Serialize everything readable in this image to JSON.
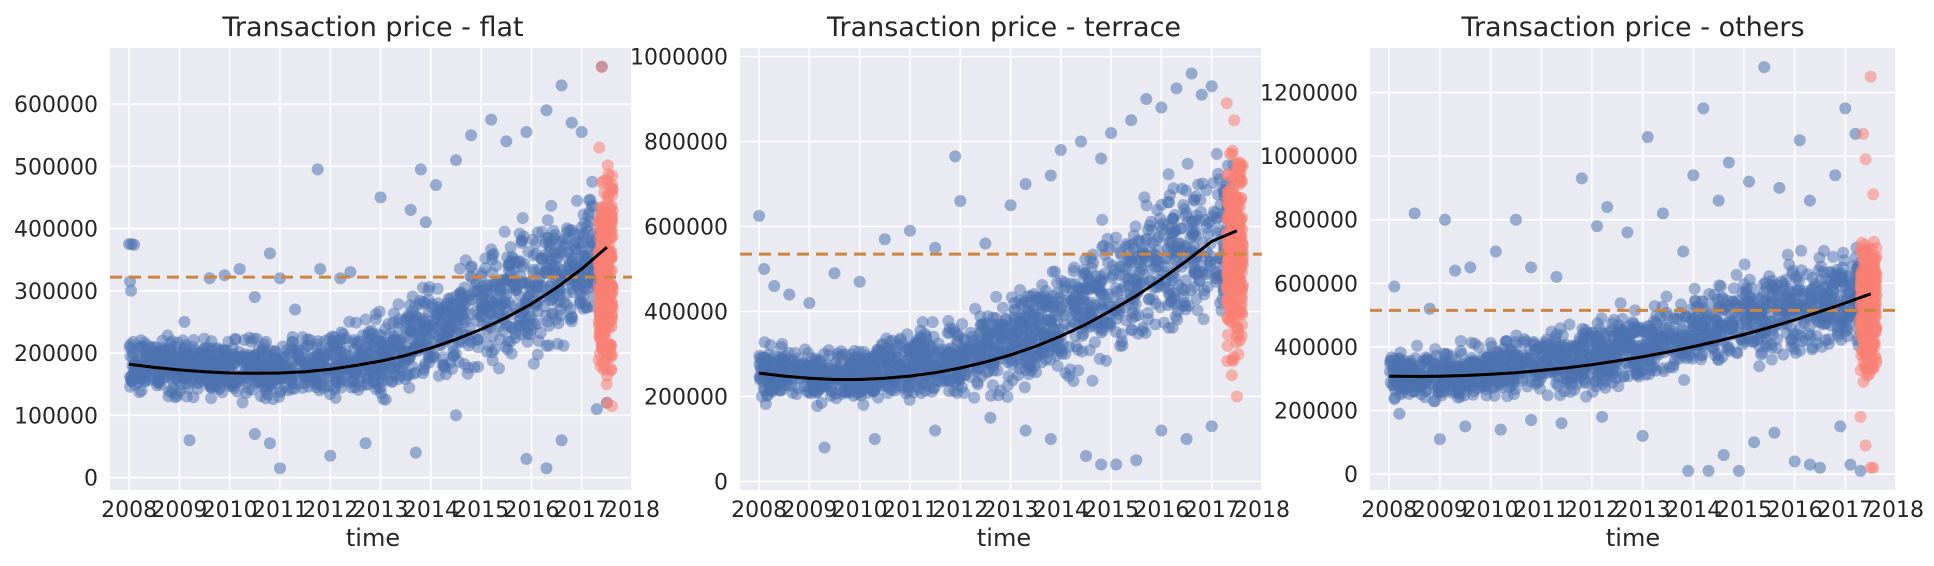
{
  "colors": {
    "background": "#ffffff",
    "axes_face": "#eaeaf2",
    "grid": "#ffffff",
    "scatter_main": "#4c72b0",
    "scatter_recent": "#fa8072",
    "trend_line": "#000000",
    "mean_line": "#cd853f",
    "text": "#262626"
  },
  "chart_data": [
    {
      "type": "scatter",
      "title": "Transaction price - flat",
      "xlabel": "time",
      "ylabel": "",
      "grid": true,
      "legend": "none",
      "xlim": [
        2007.62,
        2018.0
      ],
      "ylim": [
        -20000,
        690000
      ],
      "x_ticks": [
        2008,
        2009,
        2010,
        2011,
        2012,
        2013,
        2014,
        2015,
        2016,
        2017,
        2018
      ],
      "y_ticks": [
        0,
        100000,
        200000,
        300000,
        400000,
        500000,
        600000
      ],
      "mean_line": 322000,
      "trend_curve": {
        "x": [
          2008.0,
          2008.5,
          2009.0,
          2009.5,
          2010.0,
          2010.5,
          2011.0,
          2011.5,
          2012.0,
          2012.5,
          2013.0,
          2013.5,
          2014.0,
          2014.5,
          2015.0,
          2015.5,
          2016.0,
          2016.5,
          2017.0,
          2017.5
        ],
        "y": [
          182000,
          177000,
          173000,
          170000,
          168000,
          167500,
          168000,
          170000,
          174000,
          180000,
          187000,
          196000,
          208000,
          222000,
          238000,
          257000,
          279000,
          305000,
          335000,
          370000
        ]
      },
      "main_band": [
        [
          2008.0,
          118000,
          248000
        ],
        [
          2009.0,
          112000,
          244000
        ],
        [
          2010.0,
          108000,
          240000
        ],
        [
          2011.0,
          106000,
          240000
        ],
        [
          2012.0,
          108000,
          250000
        ],
        [
          2013.0,
          112000,
          278000
        ],
        [
          2014.0,
          124000,
          335000
        ],
        [
          2015.0,
          142000,
          400000
        ],
        [
          2016.0,
          162000,
          460000
        ],
        [
          2017.0,
          180000,
          500000
        ],
        [
          2017.45,
          195000,
          510000
        ]
      ],
      "recent_band": [
        [
          2017.33,
          140000,
          500000
        ],
        [
          2017.62,
          150000,
          520000
        ]
      ],
      "outliers": [
        [
          2008.0,
          375000
        ],
        [
          2008.05,
          375000
        ],
        [
          2008.1,
          374000
        ],
        [
          2008.02,
          315000
        ],
        [
          2008.04,
          300000
        ],
        [
          2009.1,
          250000
        ],
        [
          2009.6,
          320000
        ],
        [
          2009.9,
          325000
        ],
        [
          2010.2,
          335000
        ],
        [
          2010.5,
          290000
        ],
        [
          2010.8,
          360000
        ],
        [
          2011.0,
          320000
        ],
        [
          2011.3,
          270000
        ],
        [
          2011.75,
          495000
        ],
        [
          2011.8,
          335000
        ],
        [
          2012.2,
          320000
        ],
        [
          2012.4,
          330000
        ],
        [
          2013.0,
          450000
        ],
        [
          2013.6,
          430000
        ],
        [
          2013.8,
          495000
        ],
        [
          2013.9,
          410000
        ],
        [
          2014.1,
          470000
        ],
        [
          2014.5,
          510000
        ],
        [
          2014.8,
          550000
        ],
        [
          2015.2,
          575000
        ],
        [
          2015.5,
          540000
        ],
        [
          2015.9,
          555000
        ],
        [
          2016.3,
          590000
        ],
        [
          2016.6,
          630000
        ],
        [
          2016.8,
          570000
        ],
        [
          2017.0,
          555000
        ],
        [
          2017.4,
          660000
        ],
        [
          2009.2,
          60000
        ],
        [
          2010.5,
          70000
        ],
        [
          2010.8,
          55000
        ],
        [
          2011.0,
          15000
        ],
        [
          2012.0,
          35000
        ],
        [
          2012.7,
          55000
        ],
        [
          2013.7,
          40000
        ],
        [
          2014.5,
          100000
        ],
        [
          2015.9,
          30000
        ],
        [
          2016.3,
          15000
        ],
        [
          2016.6,
          60000
        ],
        [
          2017.3,
          110000
        ],
        [
          2017.5,
          120000
        ]
      ],
      "outliers_recent": [
        [
          2017.4,
          660000
        ],
        [
          2017.35,
          530000
        ],
        [
          2017.5,
          120000
        ],
        [
          2017.6,
          115000
        ]
      ]
    },
    {
      "type": "scatter",
      "title": "Transaction price - terrace",
      "xlabel": "time",
      "ylabel": "",
      "grid": true,
      "legend": "none",
      "xlim": [
        2007.62,
        2018.0
      ],
      "ylim": [
        -20000,
        1020000
      ],
      "x_ticks": [
        2008,
        2009,
        2010,
        2011,
        2012,
        2013,
        2014,
        2015,
        2016,
        2017,
        2018
      ],
      "y_ticks": [
        0,
        200000,
        400000,
        600000,
        800000,
        1000000
      ],
      "mean_line": 535000,
      "trend_curve": {
        "x": [
          2008.0,
          2008.5,
          2009.0,
          2009.5,
          2010.0,
          2010.5,
          2011.0,
          2011.5,
          2012.0,
          2012.5,
          2013.0,
          2013.5,
          2014.0,
          2014.5,
          2015.0,
          2015.5,
          2016.0,
          2016.5,
          2017.0,
          2017.5
        ],
        "y": [
          255000,
          248000,
          243000,
          240000,
          240000,
          243000,
          248000,
          256000,
          267000,
          281000,
          298000,
          318000,
          342000,
          370000,
          402000,
          437000,
          476000,
          519000,
          565000,
          590000
        ]
      },
      "main_band": [
        [
          2008.0,
          170000,
          340000
        ],
        [
          2009.0,
          160000,
          330000
        ],
        [
          2010.0,
          160000,
          345000
        ],
        [
          2011.0,
          160000,
          380000
        ],
        [
          2012.0,
          170000,
          420000
        ],
        [
          2013.0,
          180000,
          470000
        ],
        [
          2014.0,
          200000,
          560000
        ],
        [
          2015.0,
          240000,
          660000
        ],
        [
          2016.0,
          280000,
          760000
        ],
        [
          2017.0,
          320000,
          820000
        ],
        [
          2017.45,
          340000,
          840000
        ]
      ],
      "recent_band": [
        [
          2017.3,
          260000,
          800000
        ],
        [
          2017.62,
          280000,
          820000
        ]
      ],
      "outliers": [
        [
          2008.0,
          625000
        ],
        [
          2008.1,
          500000
        ],
        [
          2008.3,
          460000
        ],
        [
          2008.6,
          440000
        ],
        [
          2009.0,
          420000
        ],
        [
          2009.5,
          490000
        ],
        [
          2010.0,
          470000
        ],
        [
          2010.5,
          570000
        ],
        [
          2011.0,
          590000
        ],
        [
          2011.5,
          550000
        ],
        [
          2011.9,
          765000
        ],
        [
          2012.0,
          660000
        ],
        [
          2012.5,
          560000
        ],
        [
          2013.0,
          650000
        ],
        [
          2013.3,
          700000
        ],
        [
          2013.8,
          720000
        ],
        [
          2014.0,
          780000
        ],
        [
          2014.4,
          800000
        ],
        [
          2014.8,
          760000
        ],
        [
          2015.0,
          820000
        ],
        [
          2015.4,
          850000
        ],
        [
          2015.7,
          900000
        ],
        [
          2016.0,
          880000
        ],
        [
          2016.3,
          925000
        ],
        [
          2016.6,
          960000
        ],
        [
          2016.8,
          910000
        ],
        [
          2017.0,
          930000
        ],
        [
          2009.3,
          80000
        ],
        [
          2010.3,
          100000
        ],
        [
          2011.5,
          120000
        ],
        [
          2012.6,
          150000
        ],
        [
          2013.3,
          120000
        ],
        [
          2013.8,
          100000
        ],
        [
          2014.5,
          60000
        ],
        [
          2014.8,
          40000
        ],
        [
          2015.1,
          40000
        ],
        [
          2015.5,
          50000
        ],
        [
          2016.0,
          120000
        ],
        [
          2016.5,
          100000
        ],
        [
          2017.0,
          130000
        ]
      ],
      "outliers_recent": [
        [
          2017.3,
          890000
        ],
        [
          2017.45,
          850000
        ],
        [
          2017.4,
          250000
        ],
        [
          2017.5,
          200000
        ]
      ]
    },
    {
      "type": "scatter",
      "title": "Transaction price - others",
      "xlabel": "time",
      "ylabel": "",
      "grid": true,
      "legend": "none",
      "xlim": [
        2007.62,
        2018.0
      ],
      "ylim": [
        -50000,
        1340000
      ],
      "x_ticks": [
        2008,
        2009,
        2010,
        2011,
        2012,
        2013,
        2014,
        2015,
        2016,
        2017,
        2018
      ],
      "y_ticks": [
        0,
        200000,
        400000,
        600000,
        800000,
        1000000,
        1200000
      ],
      "mean_line": 515000,
      "trend_curve": {
        "x": [
          2008.0,
          2008.5,
          2009.0,
          2009.5,
          2010.0,
          2010.5,
          2011.0,
          2011.5,
          2012.0,
          2012.5,
          2013.0,
          2013.5,
          2014.0,
          2014.5,
          2015.0,
          2015.5,
          2016.0,
          2016.5,
          2017.0,
          2017.5
        ],
        "y": [
          308000,
          307000,
          308000,
          310000,
          314000,
          319000,
          326000,
          334000,
          344000,
          356000,
          369000,
          384000,
          401000,
          419000,
          439000,
          461000,
          485000,
          511000,
          538000,
          567000
        ]
      },
      "main_band": [
        [
          2008.0,
          210000,
          420000
        ],
        [
          2009.0,
          200000,
          410000
        ],
        [
          2010.0,
          210000,
          440000
        ],
        [
          2011.0,
          220000,
          480000
        ],
        [
          2012.0,
          230000,
          520000
        ],
        [
          2013.0,
          250000,
          560000
        ],
        [
          2014.0,
          270000,
          620000
        ],
        [
          2015.0,
          290000,
          680000
        ],
        [
          2016.0,
          310000,
          740000
        ],
        [
          2017.0,
          330000,
          780000
        ],
        [
          2017.45,
          340000,
          800000
        ]
      ],
      "recent_band": [
        [
          2017.3,
          280000,
          750000
        ],
        [
          2017.62,
          300000,
          780000
        ]
      ],
      "outliers": [
        [
          2008.1,
          590000
        ],
        [
          2008.5,
          820000
        ],
        [
          2008.8,
          520000
        ],
        [
          2009.1,
          800000
        ],
        [
          2009.3,
          640000
        ],
        [
          2009.6,
          650000
        ],
        [
          2010.1,
          700000
        ],
        [
          2010.5,
          800000
        ],
        [
          2010.8,
          650000
        ],
        [
          2011.3,
          620000
        ],
        [
          2011.8,
          930000
        ],
        [
          2012.1,
          780000
        ],
        [
          2012.3,
          840000
        ],
        [
          2012.7,
          760000
        ],
        [
          2013.1,
          1060000
        ],
        [
          2013.4,
          820000
        ],
        [
          2013.8,
          700000
        ],
        [
          2014.0,
          940000
        ],
        [
          2014.2,
          1150000
        ],
        [
          2014.5,
          860000
        ],
        [
          2014.7,
          980000
        ],
        [
          2015.1,
          920000
        ],
        [
          2015.4,
          1280000
        ],
        [
          2015.7,
          900000
        ],
        [
          2016.1,
          1050000
        ],
        [
          2016.3,
          860000
        ],
        [
          2016.8,
          940000
        ],
        [
          2017.0,
          1150000
        ],
        [
          2017.2,
          1070000
        ],
        [
          2008.2,
          190000
        ],
        [
          2009.0,
          110000
        ],
        [
          2009.5,
          150000
        ],
        [
          2010.2,
          140000
        ],
        [
          2010.8,
          170000
        ],
        [
          2011.4,
          160000
        ],
        [
          2012.2,
          180000
        ],
        [
          2013.0,
          120000
        ],
        [
          2013.9,
          10000
        ],
        [
          2014.3,
          10000
        ],
        [
          2014.6,
          60000
        ],
        [
          2014.9,
          10000
        ],
        [
          2015.2,
          100000
        ],
        [
          2015.6,
          130000
        ],
        [
          2016.0,
          40000
        ],
        [
          2016.3,
          30000
        ],
        [
          2016.5,
          20000
        ],
        [
          2016.9,
          150000
        ],
        [
          2017.1,
          30000
        ],
        [
          2017.3,
          10000
        ]
      ],
      "outliers_recent": [
        [
          2017.35,
          1070000
        ],
        [
          2017.5,
          1250000
        ],
        [
          2017.55,
          880000
        ],
        [
          2017.4,
          990000
        ],
        [
          2017.3,
          180000
        ],
        [
          2017.4,
          90000
        ],
        [
          2017.5,
          20000
        ],
        [
          2017.55,
          20000
        ]
      ]
    }
  ]
}
